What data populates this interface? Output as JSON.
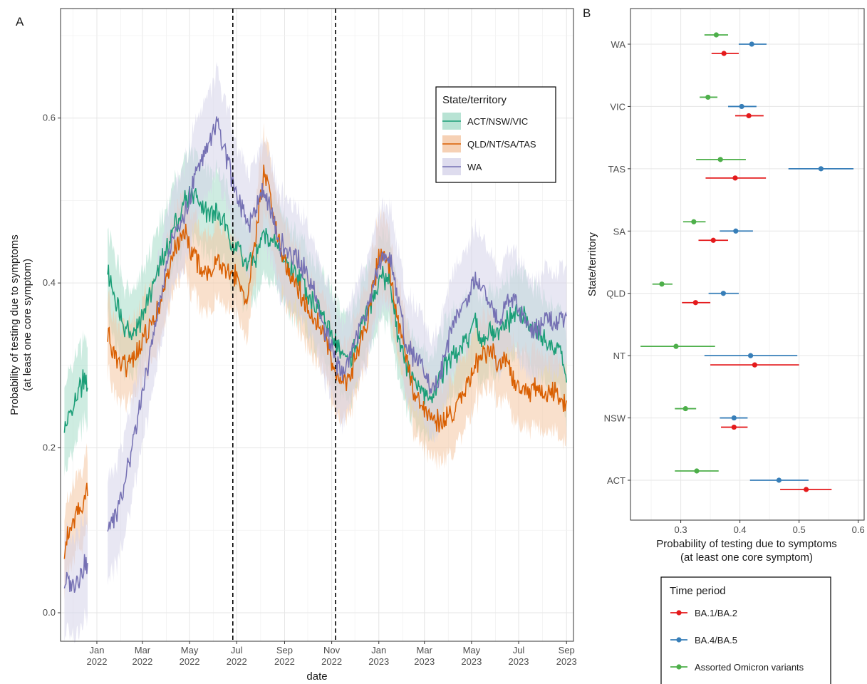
{
  "chart_data": [
    {
      "panel": "A",
      "type": "line",
      "title": "",
      "xlabel": "date",
      "ylabel": "Probability of testing due to symptoms",
      "ylabel2": "(at least one core symptom)",
      "ylim": [
        0.0,
        0.7
      ],
      "yticks": [
        "0.0",
        "0.2",
        "0.4",
        "0.6"
      ],
      "xlim": [
        "2021-11-15",
        "2023-09-10"
      ],
      "xticks": [
        {
          "date": "2022-01-01",
          "month": "Jan",
          "year": "2022"
        },
        {
          "date": "2022-03-01",
          "month": "Mar",
          "year": "2022"
        },
        {
          "date": "2022-05-01",
          "month": "May",
          "year": "2022"
        },
        {
          "date": "2022-07-01",
          "month": "Jul",
          "year": "2022"
        },
        {
          "date": "2022-09-01",
          "month": "Sep",
          "year": "2022"
        },
        {
          "date": "2022-11-01",
          "month": "Nov",
          "year": "2022"
        },
        {
          "date": "2023-01-01",
          "month": "Jan",
          "year": "2023"
        },
        {
          "date": "2023-03-01",
          "month": "Mar",
          "year": "2023"
        },
        {
          "date": "2023-05-01",
          "month": "May",
          "year": "2023"
        },
        {
          "date": "2023-07-01",
          "month": "Jul",
          "year": "2023"
        },
        {
          "date": "2023-09-01",
          "month": "Sep",
          "year": "2023"
        }
      ],
      "vlines": [
        "2022-06-26",
        "2022-11-06"
      ],
      "grid": true,
      "legend": {
        "title": "State/territory",
        "position": "top-right"
      },
      "series": [
        {
          "name": "ACT/NSW/VIC",
          "color": "#1b9e77",
          "fill": "#a6dcc9",
          "segments": [
            {
              "dates": [
                "2021-11-20",
                "2021-11-28",
                "2021-12-06",
                "2021-12-14",
                "2021-12-20"
              ],
              "values": [
                0.22,
                0.24,
                0.26,
                0.28,
                0.28
              ]
            },
            {
              "dates": [
                "2022-01-15",
                "2022-01-25",
                "2022-02-05",
                "2022-02-15",
                "2022-02-25",
                "2022-03-08",
                "2022-03-20",
                "2022-04-01",
                "2022-04-12",
                "2022-04-25",
                "2022-05-05",
                "2022-05-15",
                "2022-05-25",
                "2022-06-05",
                "2022-06-15",
                "2022-06-25",
                "2022-07-05",
                "2022-07-15",
                "2022-07-25",
                "2022-08-05",
                "2022-08-15",
                "2022-08-25",
                "2022-09-05",
                "2022-09-15",
                "2022-09-25",
                "2022-10-05",
                "2022-10-15",
                "2022-10-25",
                "2022-11-05",
                "2022-11-15",
                "2022-11-25",
                "2022-12-05",
                "2022-12-15",
                "2022-12-25",
                "2023-01-05",
                "2023-01-15",
                "2023-01-25",
                "2023-02-05",
                "2023-02-15",
                "2023-02-25",
                "2023-03-08",
                "2023-03-20",
                "2023-04-01",
                "2023-04-12",
                "2023-04-25",
                "2023-05-05",
                "2023-05-15",
                "2023-05-25",
                "2023-06-05",
                "2023-06-15",
                "2023-06-25",
                "2023-07-05",
                "2023-07-15",
                "2023-07-25",
                "2023-08-05",
                "2023-08-15",
                "2023-08-25",
                "2023-09-01"
              ],
              "values": [
                0.41,
                0.38,
                0.35,
                0.34,
                0.35,
                0.38,
                0.41,
                0.44,
                0.47,
                0.5,
                0.51,
                0.5,
                0.48,
                0.49,
                0.47,
                0.45,
                0.44,
                0.42,
                0.43,
                0.46,
                0.45,
                0.44,
                0.42,
                0.41,
                0.4,
                0.38,
                0.37,
                0.35,
                0.33,
                0.31,
                0.31,
                0.33,
                0.36,
                0.38,
                0.41,
                0.4,
                0.34,
                0.3,
                0.28,
                0.27,
                0.26,
                0.28,
                0.31,
                0.31,
                0.33,
                0.35,
                0.33,
                0.34,
                0.34,
                0.35,
                0.36,
                0.36,
                0.35,
                0.34,
                0.33,
                0.32,
                0.32,
                0.28
              ]
            }
          ]
        },
        {
          "name": "QLD/NT/SA/TAS",
          "color": "#d95f02",
          "fill": "#f4c6a2",
          "segments": [
            {
              "dates": [
                "2021-11-20",
                "2021-11-28",
                "2021-12-06",
                "2021-12-14",
                "2021-12-20"
              ],
              "values": [
                0.08,
                0.1,
                0.12,
                0.13,
                0.15
              ]
            },
            {
              "dates": [
                "2022-01-15",
                "2022-01-25",
                "2022-02-05",
                "2022-02-15",
                "2022-02-25",
                "2022-03-08",
                "2022-03-20",
                "2022-04-01",
                "2022-04-12",
                "2022-04-25",
                "2022-05-05",
                "2022-05-15",
                "2022-05-25",
                "2022-06-05",
                "2022-06-15",
                "2022-06-25",
                "2022-07-05",
                "2022-07-15",
                "2022-07-25",
                "2022-08-05",
                "2022-08-15",
                "2022-08-25",
                "2022-09-05",
                "2022-09-15",
                "2022-09-25",
                "2022-10-05",
                "2022-10-15",
                "2022-10-25",
                "2022-11-05",
                "2022-11-15",
                "2022-11-25",
                "2022-12-05",
                "2022-12-15",
                "2022-12-25",
                "2023-01-05",
                "2023-01-15",
                "2023-01-25",
                "2023-02-05",
                "2023-02-15",
                "2023-02-25",
                "2023-03-08",
                "2023-03-20",
                "2023-04-01",
                "2023-04-12",
                "2023-04-25",
                "2023-05-05",
                "2023-05-15",
                "2023-05-25",
                "2023-06-05",
                "2023-06-15",
                "2023-06-25",
                "2023-07-05",
                "2023-07-15",
                "2023-07-25",
                "2023-08-05",
                "2023-08-15",
                "2023-08-25",
                "2023-09-01"
              ],
              "values": [
                0.34,
                0.31,
                0.3,
                0.3,
                0.32,
                0.34,
                0.37,
                0.4,
                0.44,
                0.46,
                0.44,
                0.42,
                0.41,
                0.43,
                0.42,
                0.41,
                0.4,
                0.38,
                0.45,
                0.53,
                0.5,
                0.45,
                0.42,
                0.4,
                0.38,
                0.36,
                0.35,
                0.33,
                0.29,
                0.27,
                0.29,
                0.32,
                0.35,
                0.4,
                0.44,
                0.42,
                0.36,
                0.31,
                0.27,
                0.25,
                0.24,
                0.23,
                0.24,
                0.25,
                0.28,
                0.3,
                0.31,
                0.32,
                0.3,
                0.31,
                0.28,
                0.27,
                0.27,
                0.27,
                0.26,
                0.27,
                0.26,
                0.25
              ]
            }
          ]
        },
        {
          "name": "WA",
          "color": "#7570b3",
          "fill": "#d6d3ea",
          "segments": [
            {
              "dates": [
                "2021-11-20",
                "2021-11-28",
                "2021-12-06",
                "2021-12-14",
                "2021-12-20"
              ],
              "values": [
                0.04,
                0.035,
                0.04,
                0.055,
                0.055
              ]
            },
            {
              "dates": [
                "2022-01-15",
                "2022-01-25",
                "2022-02-05",
                "2022-02-15",
                "2022-02-25",
                "2022-03-08",
                "2022-03-20",
                "2022-04-01",
                "2022-04-12",
                "2022-04-25",
                "2022-05-05",
                "2022-05-15",
                "2022-05-25",
                "2022-06-05",
                "2022-06-15",
                "2022-06-25",
                "2022-07-05",
                "2022-07-15",
                "2022-07-25",
                "2022-08-05",
                "2022-08-15",
                "2022-08-25",
                "2022-09-05",
                "2022-09-15",
                "2022-09-25",
                "2022-10-05",
                "2022-10-15",
                "2022-10-25",
                "2022-11-05",
                "2022-11-15",
                "2022-11-25",
                "2022-12-05",
                "2022-12-15",
                "2022-12-25",
                "2023-01-05",
                "2023-01-15",
                "2023-01-25",
                "2023-02-05",
                "2023-02-15",
                "2023-02-25",
                "2023-03-08",
                "2023-03-20",
                "2023-04-01",
                "2023-04-12",
                "2023-04-25",
                "2023-05-05",
                "2023-05-15",
                "2023-05-25",
                "2023-06-05",
                "2023-06-15",
                "2023-06-25",
                "2023-07-05",
                "2023-07-15",
                "2023-07-25",
                "2023-08-05",
                "2023-08-15",
                "2023-08-25",
                "2023-09-01"
              ],
              "values": [
                0.1,
                0.12,
                0.15,
                0.2,
                0.25,
                0.3,
                0.36,
                0.42,
                0.46,
                0.48,
                0.52,
                0.55,
                0.57,
                0.59,
                0.56,
                0.53,
                0.5,
                0.47,
                0.49,
                0.52,
                0.48,
                0.45,
                0.44,
                0.43,
                0.42,
                0.4,
                0.37,
                0.34,
                0.31,
                0.29,
                0.31,
                0.34,
                0.36,
                0.4,
                0.43,
                0.44,
                0.38,
                0.33,
                0.31,
                0.3,
                0.27,
                0.28,
                0.33,
                0.36,
                0.38,
                0.4,
                0.4,
                0.38,
                0.35,
                0.37,
                0.38,
                0.36,
                0.35,
                0.34,
                0.36,
                0.35,
                0.36,
                0.35
              ]
            }
          ]
        }
      ]
    },
    {
      "panel": "B",
      "type": "scatter",
      "title": "",
      "xlabel": "Probability of testing due to symptoms",
      "xlabel2": "(at least one core symptom)",
      "ylabel": "State/territory",
      "xlim": [
        0.215,
        0.61
      ],
      "xticks": [
        "0.3",
        "0.4",
        "0.5",
        "0.6"
      ],
      "categories": [
        "WA",
        "VIC",
        "TAS",
        "SA",
        "QLD",
        "NT",
        "NSW",
        "ACT"
      ],
      "grid": true,
      "legend": {
        "title": "Time period",
        "position": "bottom"
      },
      "series": [
        {
          "name": "BA.1/BA.2",
          "color": "#e41a1c",
          "estimate": [
            0.373,
            0.415,
            0.392,
            0.355,
            0.325,
            0.425,
            0.39,
            0.512
          ],
          "lower": [
            0.352,
            0.392,
            0.342,
            0.33,
            0.302,
            0.35,
            0.368,
            0.468
          ],
          "upper": [
            0.398,
            0.44,
            0.444,
            0.38,
            0.35,
            0.5,
            0.413,
            0.555
          ]
        },
        {
          "name": "BA.4/BA.5",
          "color": "#377eb8",
          "estimate": [
            0.42,
            0.403,
            0.537,
            0.393,
            0.372,
            0.418,
            0.39,
            0.466
          ],
          "lower": [
            0.398,
            0.38,
            0.482,
            0.366,
            0.347,
            0.34,
            0.366,
            0.417
          ],
          "upper": [
            0.445,
            0.428,
            0.592,
            0.422,
            0.398,
            0.497,
            0.413,
            0.516
          ]
        },
        {
          "name": "Assorted Omicron variants",
          "color": "#4daf4a",
          "estimate": [
            0.36,
            0.346,
            0.367,
            0.322,
            0.268,
            0.292,
            0.308,
            0.327
          ],
          "lower": [
            0.34,
            0.332,
            0.326,
            0.304,
            0.252,
            0.232,
            0.29,
            0.29
          ],
          "upper": [
            0.38,
            0.362,
            0.41,
            0.342,
            0.286,
            0.358,
            0.326,
            0.364
          ]
        }
      ]
    }
  ]
}
